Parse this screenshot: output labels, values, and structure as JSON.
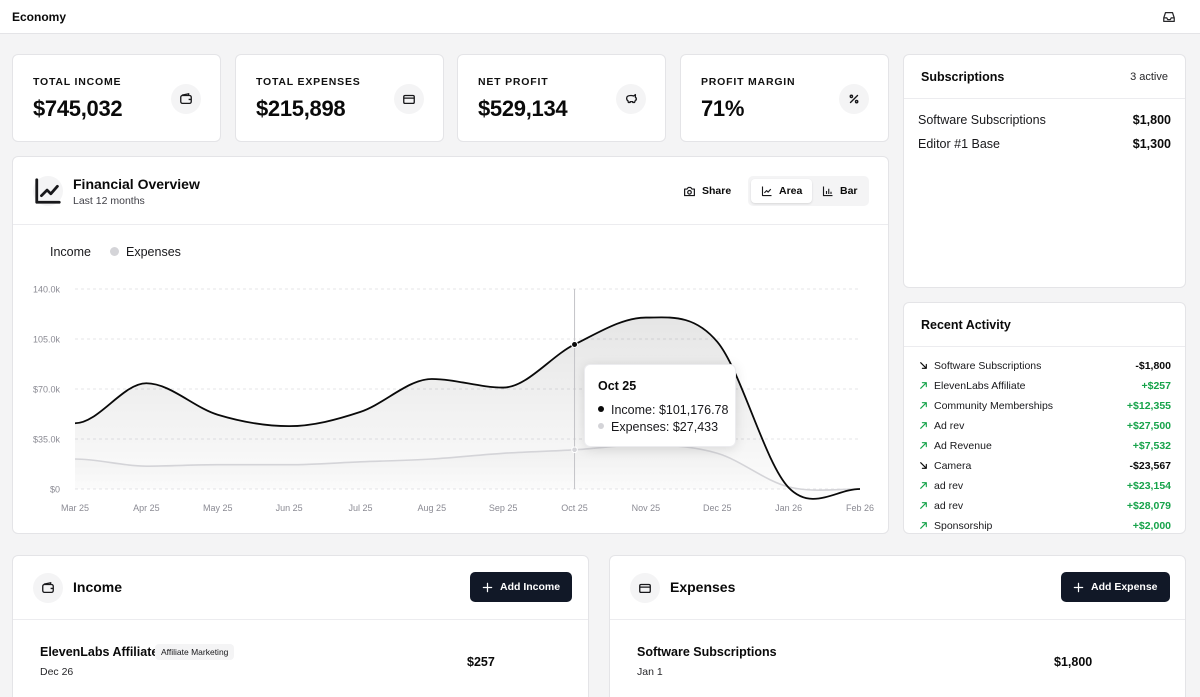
{
  "app": {
    "title": "Economy",
    "inbox_icon": "inbox-icon"
  },
  "stats": [
    {
      "label": "TOTAL INCOME",
      "value": "$745,032",
      "icon": "wallet-icon"
    },
    {
      "label": "TOTAL EXPENSES",
      "value": "$215,898",
      "icon": "credit-card-icon"
    },
    {
      "label": "NET PROFIT",
      "value": "$529,134",
      "icon": "piggy-bank-icon"
    },
    {
      "label": "PROFIT MARGIN",
      "value": "71%",
      "icon": "percent-icon"
    }
  ],
  "subscriptions": {
    "title": "Subscriptions",
    "count": "3 active",
    "items": [
      {
        "name": "Software Subscriptions",
        "amount": "$1,800"
      },
      {
        "name": "Editor #1 Base",
        "amount": "$1,300"
      }
    ]
  },
  "activity": {
    "title": "Recent Activity",
    "items": [
      {
        "name": "Software Subscriptions",
        "amount": "-$1,800",
        "dir": "out"
      },
      {
        "name": "ElevenLabs Affiliate",
        "amount": "+$257",
        "dir": "in"
      },
      {
        "name": "Community Memberships",
        "amount": "+$12,355",
        "dir": "in"
      },
      {
        "name": "Ad rev",
        "amount": "+$27,500",
        "dir": "in"
      },
      {
        "name": "Ad Revenue",
        "amount": "+$7,532",
        "dir": "in"
      },
      {
        "name": "Camera",
        "amount": "-$23,567",
        "dir": "out"
      },
      {
        "name": "ad rev",
        "amount": "+$23,154",
        "dir": "in"
      },
      {
        "name": "ad rev",
        "amount": "+$28,079",
        "dir": "in"
      },
      {
        "name": "Sponsorship",
        "amount": "+$2,000",
        "dir": "in"
      }
    ]
  },
  "overview": {
    "title": "Financial Overview",
    "subtitle": "Last 12 months",
    "share_label": "Share",
    "area_label": "Area",
    "bar_label": "Bar"
  },
  "chart_data": {
    "type": "area",
    "title": "Financial Overview",
    "legend": [
      "Income",
      "Expenses"
    ],
    "categories": [
      "Mar 25",
      "Apr 25",
      "May 25",
      "Jun 25",
      "Jul 25",
      "Aug 25",
      "Sep 25",
      "Oct 25",
      "Nov 25",
      "Dec 25",
      "Jan 26",
      "Feb 26"
    ],
    "series": [
      {
        "name": "Income",
        "values": [
          46000,
          74000,
          52000,
          44000,
          54000,
          77000,
          71000,
          101176.78,
          120000,
          103000,
          1000,
          0
        ]
      },
      {
        "name": "Expenses",
        "values": [
          21000,
          16000,
          17000,
          17000,
          19000,
          21000,
          25000,
          27433,
          31000,
          25000,
          1500,
          0
        ]
      }
    ],
    "yticks": [
      "$0",
      "$35.0k",
      "$70.0k",
      "105.0k",
      "140.0k"
    ],
    "ylim": [
      0,
      140000
    ],
    "grid": true,
    "tooltip": {
      "date": "Oct 25",
      "income_label": "Income:",
      "income": "$101,176.78",
      "expenses_label": "Expenses:",
      "expenses": "$27,433"
    }
  },
  "income": {
    "title": "Income",
    "button": "Add Income",
    "item": {
      "name": "ElevenLabs Affiliate",
      "tag": "Affiliate Marketing",
      "date": "Dec 26",
      "amount": "$257"
    }
  },
  "expenses": {
    "title": "Expenses",
    "button": "Add Expense",
    "item": {
      "name": "Software Subscriptions",
      "date": "Jan 1",
      "amount": "$1,800"
    }
  }
}
